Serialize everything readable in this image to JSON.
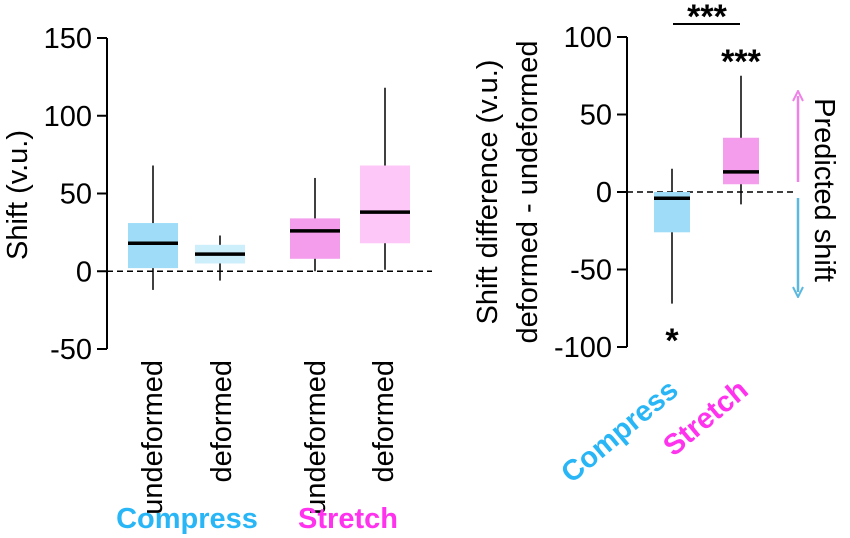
{
  "colors": {
    "compress_dark": "#9edcf7",
    "compress_light": "#cdeefb",
    "stretch_dark": "#f59ded",
    "stretch_light": "#fdc7f7",
    "compress_label": "#29b6f6",
    "stretch_label": "#ff33ee",
    "arrow_up": "#ee82e6",
    "arrow_down": "#5bb8df"
  },
  "chart_data": [
    {
      "type": "box",
      "ylabel": "Shift (v.u.)",
      "ylim": [
        -50,
        150
      ],
      "yticks": [
        "150",
        "100",
        "50",
        "0",
        "-50"
      ],
      "zero_line": "dashed",
      "categories": [
        "undeformed",
        "deformed",
        "undeformed",
        "deformed"
      ],
      "groups": [
        {
          "label": "Compress",
          "members": [
            "undeformed",
            "deformed"
          ]
        },
        {
          "label": "Stretch",
          "members": [
            "undeformed",
            "deformed"
          ]
        }
      ],
      "boxes": [
        {
          "category": "undeformed",
          "group": "Compress",
          "whisker_low": -12,
          "q1": 2,
          "median": 18,
          "q3": 31,
          "whisker_high": 68,
          "shade": "dark"
        },
        {
          "category": "deformed",
          "group": "Compress",
          "whisker_low": -6,
          "q1": 5,
          "median": 11,
          "q3": 17,
          "whisker_high": 23,
          "shade": "light"
        },
        {
          "category": "undeformed",
          "group": "Stretch",
          "whisker_low": 0,
          "q1": 8,
          "median": 26,
          "q3": 34,
          "whisker_high": 60,
          "shade": "dark"
        },
        {
          "category": "deformed",
          "group": "Stretch",
          "whisker_low": 1,
          "q1": 18,
          "median": 38,
          "q3": 68,
          "whisker_high": 118,
          "shade": "light"
        }
      ]
    },
    {
      "type": "box",
      "ylabel_line1": "Shift difference (v.u.)",
      "ylabel_line2": "deformed - undeformed",
      "ylim": [
        -100,
        100
      ],
      "yticks": [
        "100",
        "50",
        "0",
        "-50",
        "-100"
      ],
      "zero_line": "dashed",
      "categories": [
        "Compress",
        "Stretch"
      ],
      "boxes": [
        {
          "category": "Compress",
          "whisker_low": -72,
          "q1": -26,
          "median": -4,
          "q3": 0,
          "whisker_high": 15,
          "significance": "*"
        },
        {
          "category": "Stretch",
          "whisker_low": -8,
          "q1": 5,
          "median": 13,
          "q3": 35,
          "whisker_high": 75,
          "significance": "***"
        }
      ],
      "comparison": {
        "between": [
          "Compress",
          "Stretch"
        ],
        "significance": "***"
      },
      "side_annotation": "Predicted shift"
    }
  ]
}
